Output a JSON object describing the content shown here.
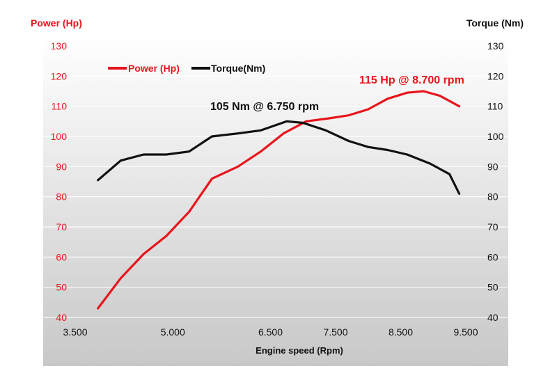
{
  "chart_data": {
    "type": "line",
    "left_axis_title": "Power (Hp)",
    "right_axis_title": "Torque (Nm)",
    "xlabel": "Engine speed (Rpm)",
    "x_range": [
      3500,
      9500
    ],
    "y_range": [
      40,
      130
    ],
    "x_ticks": [
      {
        "value": 3500,
        "label": "3.500"
      },
      {
        "value": 5000,
        "label": "5.000"
      },
      {
        "value": 6500,
        "label": "6.500"
      },
      {
        "value": 7500,
        "label": "7.500"
      },
      {
        "value": 8500,
        "label": "8.500"
      },
      {
        "value": 9500,
        "label": "9.500"
      }
    ],
    "y_ticks": [
      40,
      50,
      60,
      70,
      80,
      90,
      100,
      110,
      120,
      130
    ],
    "grid": true,
    "legend": {
      "placement": "top-left",
      "items": [
        {
          "name": "Power (Hp)",
          "color": "#e8141c"
        },
        {
          "name": "Torque(Nm)",
          "color": "#111111"
        }
      ]
    },
    "series": [
      {
        "name": "Power (Hp)",
        "axis": "left",
        "color": "#e8141c",
        "x": [
          3850,
          4200,
          4550,
          4900,
          5250,
          5600,
          6000,
          6350,
          6700,
          7050,
          7400,
          7700,
          8000,
          8300,
          8600,
          8850,
          9100,
          9400
        ],
        "y": [
          43,
          53,
          61,
          67,
          75,
          86,
          90,
          95,
          101,
          105,
          106,
          107,
          109,
          112.5,
          114.5,
          115,
          113.5,
          110
        ]
      },
      {
        "name": "Torque(Nm)",
        "axis": "right",
        "color": "#111111",
        "x": [
          3850,
          4200,
          4550,
          4900,
          5250,
          5600,
          6000,
          6350,
          6750,
          7000,
          7350,
          7700,
          8000,
          8300,
          8600,
          8950,
          9250,
          9400
        ],
        "y": [
          85.5,
          92,
          94,
          94,
          95,
          100,
          101,
          102,
          105,
          104.5,
          102,
          98.5,
          96.5,
          95.5,
          94,
          91,
          87.5,
          81
        ]
      }
    ],
    "annotations": [
      {
        "text": "115 Hp @ 8.700 rpm",
        "color": "#e8141c"
      },
      {
        "text": "105 Nm @ 6.750 rpm",
        "color": "#111111"
      }
    ]
  }
}
